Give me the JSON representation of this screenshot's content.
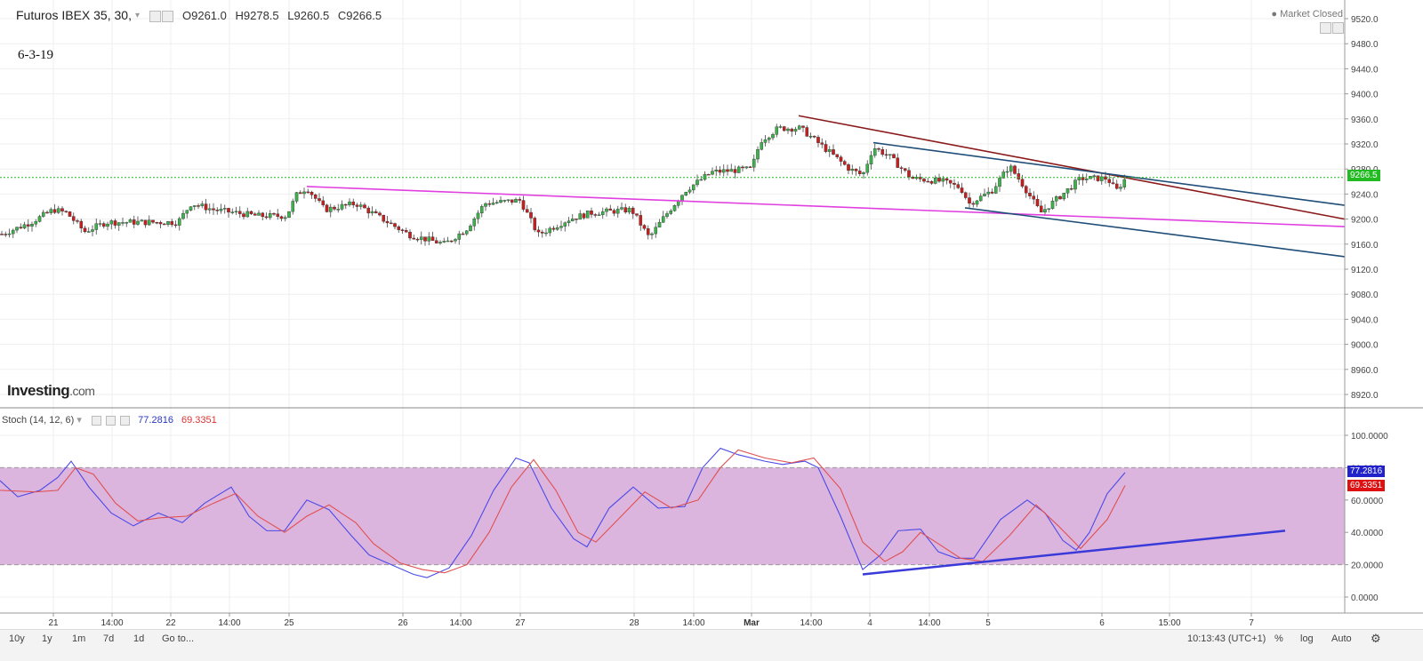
{
  "header": {
    "title": "Futuros IBEX 35, 30,",
    "open": "O9261.0",
    "high": "H9278.5",
    "low": "L9260.5",
    "close": "C9266.5",
    "market_status": "Market Closed"
  },
  "annotation": "6-3-19",
  "logo": {
    "main": "Investing",
    "suffix": ".com"
  },
  "indicator": {
    "label": "Stoch (14, 12, 6)",
    "k_value": "77.2816",
    "d_value": "69.3351"
  },
  "price_label": "9266.5",
  "stoch_labels": {
    "k": "77.2816",
    "d": "69.3351"
  },
  "toolbar": {
    "ranges": [
      "10y",
      "1y",
      "1m",
      "7d",
      "1d",
      "Go to..."
    ],
    "time": "10:13:43 (UTC+1)",
    "right": [
      "%",
      "log",
      "Auto"
    ]
  },
  "colors": {
    "up": "#3bb34a",
    "down": "#c81e1e",
    "magenta_line": "#e040e0",
    "brown_line": "#8b1a1a",
    "navy_line": "#1f4e79",
    "stoch_k": "#4a4ae8",
    "stoch_d": "#e05050",
    "stoch_band": "#dcb5de",
    "last_price": "#22bb22"
  },
  "chart_data": [
    {
      "type": "candlestick",
      "title": "Futuros IBEX 35, 30,",
      "x_ticks": [
        "21",
        "14:00",
        "22",
        "14:00",
        "25",
        "26",
        "14:00",
        "27",
        "28",
        "14:00",
        "Mar",
        "14:00",
        "4",
        "14:00",
        "5",
        "6",
        "15:00",
        "7"
      ],
      "y_ticks": [
        9520,
        9480,
        9440,
        9400,
        9360,
        9320,
        9280,
        9240,
        9200,
        9160,
        9120,
        9080,
        9040,
        9000,
        8960,
        8920
      ],
      "ylim": [
        8900,
        9540
      ],
      "last_price": 9266.5,
      "anchor_points": [
        [
          0,
          9175
        ],
        [
          18,
          9185
        ],
        [
          35,
          9195
        ],
        [
          60,
          9215
        ],
        [
          75,
          9210
        ],
        [
          95,
          9180
        ],
        [
          120,
          9195
        ],
        [
          160,
          9195
        ],
        [
          200,
          9195
        ],
        [
          215,
          9225
        ],
        [
          240,
          9215
        ],
        [
          290,
          9205
        ],
        [
          322,
          9205
        ],
        [
          334,
          9240
        ],
        [
          345,
          9250
        ],
        [
          365,
          9215
        ],
        [
          400,
          9225
        ],
        [
          430,
          9200
        ],
        [
          460,
          9175
        ],
        [
          500,
          9160
        ],
        [
          525,
          9185
        ],
        [
          545,
          9225
        ],
        [
          585,
          9230
        ],
        [
          605,
          9175
        ],
        [
          640,
          9200
        ],
        [
          665,
          9210
        ],
        [
          710,
          9215
        ],
        [
          730,
          9170
        ],
        [
          745,
          9200
        ],
        [
          770,
          9245
        ],
        [
          800,
          9275
        ],
        [
          845,
          9280
        ],
        [
          855,
          9325
        ],
        [
          875,
          9345
        ],
        [
          900,
          9345
        ],
        [
          930,
          9310
        ],
        [
          955,
          9280
        ],
        [
          970,
          9270
        ],
        [
          982,
          9315
        ],
        [
          1000,
          9300
        ],
        [
          1025,
          9265
        ],
        [
          1060,
          9260
        ],
        [
          1080,
          9250
        ],
        [
          1090,
          9225
        ],
        [
          1115,
          9245
        ],
        [
          1135,
          9285
        ],
        [
          1150,
          9255
        ],
        [
          1170,
          9210
        ],
        [
          1195,
          9240
        ],
        [
          1215,
          9265
        ],
        [
          1245,
          9265
        ],
        [
          1255,
          9245
        ],
        [
          1266,
          9266
        ]
      ],
      "trend_lines": [
        {
          "color": "magenta",
          "points": [
            [
              345,
              9252
            ],
            [
              1512,
              9188
            ]
          ]
        },
        {
          "color": "brown",
          "points": [
            [
              898,
              9365
            ],
            [
              1512,
              9200
            ]
          ]
        },
        {
          "color": "navy",
          "points": [
            [
              982,
              9322
            ],
            [
              1512,
              9222
            ]
          ]
        },
        {
          "color": "navy",
          "points": [
            [
              1085,
              9218
            ],
            [
              1512,
              9140
            ]
          ]
        }
      ]
    },
    {
      "type": "line",
      "title": "Stoch (14, 12, 6)",
      "y_ticks": [
        "100.0000",
        "80.0000",
        "60.0000",
        "40.0000",
        "20.0000",
        "0.0000"
      ],
      "ylim": [
        -10,
        110
      ],
      "band": [
        20,
        80
      ],
      "series": [
        {
          "name": "77.2816",
          "points": [
            [
              0,
              72
            ],
            [
              20,
              62
            ],
            [
              45,
              66
            ],
            [
              65,
              74
            ],
            [
              80,
              84
            ],
            [
              100,
              68
            ],
            [
              125,
              52
            ],
            [
              150,
              44
            ],
            [
              178,
              52
            ],
            [
              205,
              46
            ],
            [
              230,
              58
            ],
            [
              260,
              68
            ],
            [
              280,
              50
            ],
            [
              300,
              41
            ],
            [
              320,
              41
            ],
            [
              345,
              60
            ],
            [
              370,
              54
            ],
            [
              395,
              38
            ],
            [
              415,
              26
            ],
            [
              440,
              20
            ],
            [
              465,
              14
            ],
            [
              480,
              12
            ],
            [
              505,
              18
            ],
            [
              530,
              38
            ],
            [
              555,
              66
            ],
            [
              580,
              86
            ],
            [
              595,
              83
            ],
            [
              620,
              55
            ],
            [
              645,
              36
            ],
            [
              660,
              31
            ],
            [
              685,
              55
            ],
            [
              712,
              68
            ],
            [
              740,
              55
            ],
            [
              770,
              56
            ],
            [
              790,
              80
            ],
            [
              810,
              92
            ],
            [
              830,
              88
            ],
            [
              860,
              84
            ],
            [
              880,
              82
            ],
            [
              905,
              84
            ],
            [
              920,
              80
            ],
            [
              945,
              50
            ],
            [
              970,
              17
            ],
            [
              990,
              26
            ],
            [
              1010,
              41
            ],
            [
              1035,
              42
            ],
            [
              1055,
              28
            ],
            [
              1075,
              24
            ],
            [
              1095,
              24
            ],
            [
              1125,
              48
            ],
            [
              1155,
              60
            ],
            [
              1175,
              52
            ],
            [
              1195,
              35
            ],
            [
              1210,
              29
            ],
            [
              1225,
              40
            ],
            [
              1245,
              64
            ],
            [
              1265,
              77
            ]
          ]
        },
        {
          "name": "69.3351",
          "points": [
            [
              0,
              66
            ],
            [
              40,
              65
            ],
            [
              65,
              66
            ],
            [
              85,
              80
            ],
            [
              105,
              76
            ],
            [
              130,
              58
            ],
            [
              155,
              47
            ],
            [
              180,
              49
            ],
            [
              210,
              50
            ],
            [
              240,
              58
            ],
            [
              265,
              64
            ],
            [
              290,
              50
            ],
            [
              320,
              40
            ],
            [
              345,
              50
            ],
            [
              370,
              57
            ],
            [
              400,
              46
            ],
            [
              420,
              33
            ],
            [
              450,
              21
            ],
            [
              475,
              17
            ],
            [
              500,
              15
            ],
            [
              525,
              20
            ],
            [
              550,
              40
            ],
            [
              575,
              68
            ],
            [
              600,
              85
            ],
            [
              625,
              66
            ],
            [
              650,
              40
            ],
            [
              670,
              34
            ],
            [
              695,
              48
            ],
            [
              725,
              65
            ],
            [
              755,
              55
            ],
            [
              785,
              60
            ],
            [
              810,
              80
            ],
            [
              830,
              91
            ],
            [
              860,
              86
            ],
            [
              890,
              83
            ],
            [
              915,
              86
            ],
            [
              945,
              67
            ],
            [
              970,
              34
            ],
            [
              995,
              22
            ],
            [
              1015,
              28
            ],
            [
              1035,
              40
            ],
            [
              1055,
              33
            ],
            [
              1080,
              24
            ],
            [
              1105,
              22
            ],
            [
              1135,
              38
            ],
            [
              1165,
              57
            ],
            [
              1190,
              44
            ],
            [
              1215,
              30
            ],
            [
              1245,
              48
            ],
            [
              1265,
              69
            ]
          ]
        }
      ],
      "trend_lines": [
        {
          "color": "blue",
          "points": [
            [
              970,
              14
            ],
            [
              1445,
              41
            ]
          ]
        }
      ]
    }
  ]
}
